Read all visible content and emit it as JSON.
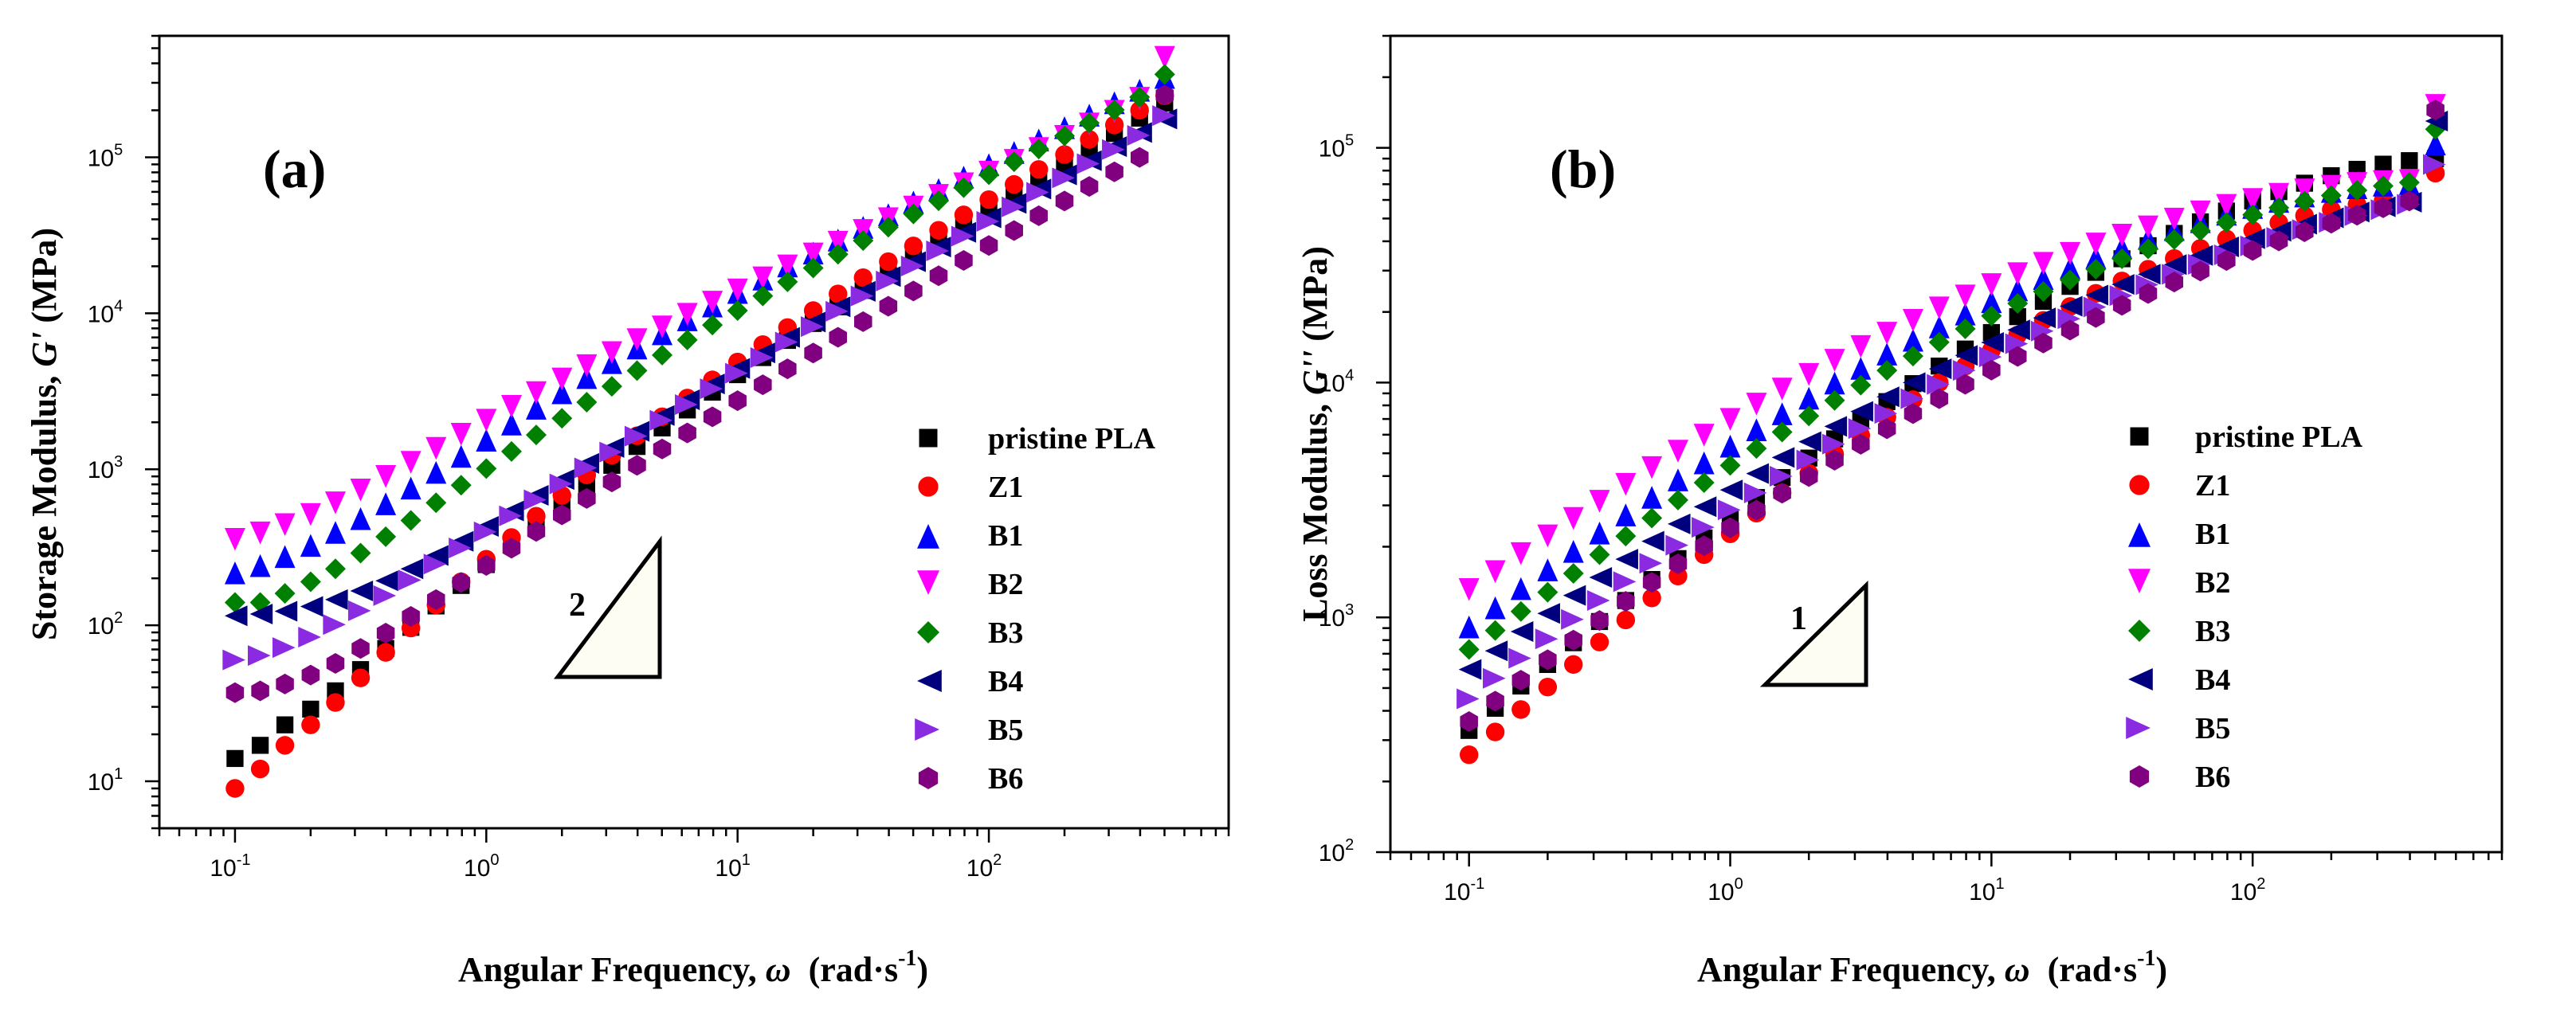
{
  "colors": {
    "pristine PLA": "#000000",
    "Z1": "#ff0000",
    "B1": "#0000ff",
    "B2": "#ff00ff",
    "B3": "#008000",
    "B4": "#00007f",
    "B5": "#8a2be2",
    "B6": "#800080",
    "triangle_fill": "#fdfdf3"
  },
  "chart_data": [
    {
      "type": "scatter",
      "panel_label": "(a)",
      "xscale": "log",
      "yscale": "log",
      "xlim": [
        0.05,
        900
      ],
      "ylim": [
        5,
        600000
      ],
      "xlabel": {
        "main": "Angular Frequency, ",
        "symbol": "ω",
        "unit": "(rad·s",
        "exp": "-1",
        "close": ")"
      },
      "ylabel": {
        "main": "Storage Modulus, ",
        "symbol": "G'",
        "unit": " (MPa)"
      },
      "xticks": [
        {
          "base": "10",
          "exp": "-1"
        },
        {
          "base": "10",
          "exp": "0"
        },
        {
          "base": "10",
          "exp": "1"
        },
        {
          "base": "10",
          "exp": "2"
        }
      ],
      "yticks": [
        {
          "base": "10",
          "exp": "1"
        },
        {
          "base": "10",
          "exp": "2"
        },
        {
          "base": "10",
          "exp": "3"
        },
        {
          "base": "10",
          "exp": "4"
        },
        {
          "base": "10",
          "exp": "5"
        }
      ],
      "slope_label": "2",
      "legend_position": "right-middle",
      "x": [
        0.1,
        0.126,
        0.158,
        0.2,
        0.251,
        0.316,
        0.398,
        0.501,
        0.631,
        0.794,
        1.0,
        1.26,
        1.58,
        2.0,
        2.51,
        3.16,
        3.98,
        5.01,
        6.31,
        7.94,
        10.0,
        12.6,
        15.8,
        20.0,
        25.1,
        31.6,
        39.8,
        50.1,
        63.1,
        79.4,
        100,
        126,
        158,
        200,
        251,
        316,
        398,
        501
      ],
      "series": [
        {
          "name": "pristine PLA",
          "marker": "square",
          "values": [
            14,
            17,
            23,
            29,
            38,
            52,
            71,
            97,
            133,
            180,
            245,
            330,
            445,
            600,
            800,
            1060,
            1400,
            1840,
            2400,
            3120,
            4040,
            5200,
            6700,
            8600,
            11000,
            14000,
            17800,
            22600,
            28600,
            36100,
            45500,
            57300,
            72000,
            90400,
            113000,
            142000,
            178000,
            222000
          ]
        },
        {
          "name": "Z1",
          "marker": "circle",
          "values": [
            9,
            12,
            17,
            23,
            32,
            46,
            67,
            96,
            135,
            190,
            265,
            365,
            500,
            680,
            920,
            1230,
            1640,
            2170,
            2860,
            3740,
            4870,
            6300,
            8100,
            10400,
            13300,
            16900,
            21400,
            27000,
            34000,
            42700,
            53500,
            66900,
            83500,
            104000,
            130000,
            161000,
            200000,
            248000
          ]
        },
        {
          "name": "B1",
          "marker": "triangle-up",
          "values": [
            220,
            245,
            280,
            330,
            400,
            490,
            610,
            770,
            970,
            1230,
            1560,
            1980,
            2500,
            3140,
            3930,
            4900,
            6080,
            7500,
            9220,
            11300,
            13800,
            16800,
            20400,
            24700,
            29900,
            36100,
            43500,
            52400,
            63000,
            75700,
            90900,
            109000,
            131000,
            157000,
            189000,
            227000,
            273000,
            330000
          ]
        },
        {
          "name": "B2",
          "marker": "triangle-down",
          "values": [
            350,
            385,
            435,
            505,
            600,
            725,
            885,
            1090,
            1340,
            1650,
            2030,
            2490,
            3050,
            3730,
            4540,
            5510,
            6670,
            8050,
            9690,
            11600,
            13900,
            16600,
            19800,
            23600,
            28100,
            33400,
            39700,
            47200,
            56000,
            66500,
            79000,
            94000,
            112000,
            134000,
            161000,
            194000,
            235000,
            430000
          ]
        },
        {
          "name": "B3",
          "marker": "diamond",
          "values": [
            140,
            140,
            160,
            190,
            230,
            290,
            370,
            470,
            610,
            790,
            1010,
            1300,
            1660,
            2120,
            2690,
            3400,
            4290,
            5390,
            6740,
            8400,
            10400,
            12900,
            15900,
            19500,
            23900,
            29200,
            35600,
            43300,
            52600,
            63800,
            77300,
            93600,
            113000,
            137000,
            166000,
            201000,
            243000,
            340000
          ]
        },
        {
          "name": "B4",
          "marker": "triangle-left",
          "values": [
            115,
            118,
            123,
            132,
            146,
            166,
            193,
            230,
            280,
            345,
            430,
            540,
            680,
            860,
            1090,
            1380,
            1750,
            2210,
            2790,
            3520,
            4430,
            5570,
            7000,
            8780,
            11000,
            13800,
            17200,
            21400,
            26600,
            33000,
            40900,
            50600,
            62500,
            77100,
            95000,
            117000,
            144000,
            176000
          ]
        },
        {
          "name": "B5",
          "marker": "triangle-right",
          "values": [
            60,
            64,
            72,
            84,
            101,
            124,
            155,
            195,
            247,
            313,
            397,
            503,
            637,
            806,
            1020,
            1290,
            1630,
            2060,
            2600,
            3280,
            4130,
            5200,
            6540,
            8210,
            10300,
            12900,
            16100,
            20100,
            25100,
            31200,
            38800,
            48100,
            59600,
            73700,
            91000,
            112000,
            138000,
            185000
          ]
        },
        {
          "name": "B6",
          "marker": "hexagon",
          "values": [
            37,
            38,
            42,
            48,
            57,
            71,
            89,
            114,
            146,
            188,
            242,
            312,
            400,
            510,
            650,
            830,
            1060,
            1350,
            1710,
            2170,
            2750,
            3480,
            4400,
            5560,
            7010,
            8830,
            11100,
            13900,
            17400,
            21800,
            27200,
            33900,
            42200,
            52400,
            65000,
            80600,
            99800,
            250000
          ]
        }
      ]
    },
    {
      "type": "scatter",
      "panel_label": "(b)",
      "xscale": "log",
      "yscale": "log",
      "xlim": [
        0.05,
        900
      ],
      "ylim": [
        100,
        300000
      ],
      "xlabel": {
        "main": "Angular Frequency, ",
        "symbol": "ω",
        "unit": "(rad·s",
        "exp": "-1",
        "close": ")"
      },
      "ylabel": {
        "main": "Loss Modulus, ",
        "symbol": "G''",
        "unit": " (MPa)"
      },
      "xticks": [
        {
          "base": "10",
          "exp": "-1"
        },
        {
          "base": "10",
          "exp": "0"
        },
        {
          "base": "10",
          "exp": "1"
        },
        {
          "base": "10",
          "exp": "2"
        }
      ],
      "yticks": [
        {
          "base": "10",
          "exp": "2"
        },
        {
          "base": "10",
          "exp": "3"
        },
        {
          "base": "10",
          "exp": "4"
        },
        {
          "base": "10",
          "exp": "5"
        }
      ],
      "slope_label": "1",
      "legend_position": "right-middle",
      "x": [
        0.1,
        0.126,
        0.158,
        0.2,
        0.251,
        0.316,
        0.398,
        0.501,
        0.631,
        0.794,
        1.0,
        1.26,
        1.58,
        2.0,
        2.51,
        3.16,
        3.98,
        5.01,
        6.31,
        7.94,
        10.0,
        12.6,
        15.8,
        20.0,
        25.1,
        31.6,
        39.8,
        50.1,
        63.1,
        79.4,
        100,
        126,
        158,
        200,
        251,
        316,
        398,
        501
      ],
      "series": [
        {
          "name": "pristine PLA",
          "marker": "square",
          "values": [
            330,
            410,
            510,
            630,
            780,
            960,
            1180,
            1450,
            1780,
            2180,
            2660,
            3240,
            3940,
            4770,
            5760,
            6930,
            8300,
            9900,
            11760,
            13900,
            16340,
            19100,
            22200,
            25700,
            29500,
            33700,
            38300,
            43200,
            48400,
            53800,
            59400,
            65100,
            70700,
            76100,
            81000,
            85200,
            88200,
            90000
          ]
        },
        {
          "name": "Z1",
          "marker": "circle",
          "values": [
            260,
            325,
            405,
            505,
            630,
            785,
            975,
            1210,
            1500,
            1850,
            2270,
            2780,
            3390,
            4110,
            4960,
            5960,
            7120,
            8460,
            10000,
            11760,
            13740,
            15950,
            18400,
            21100,
            24000,
            27100,
            30400,
            33800,
            37300,
            40900,
            44500,
            48000,
            51400,
            54600,
            57400,
            59700,
            61300,
            78000
          ]
        },
        {
          "name": "B1",
          "marker": "triangle-up",
          "values": [
            920,
            1110,
            1340,
            1610,
            1930,
            2310,
            2760,
            3280,
            3890,
            4600,
            5420,
            6360,
            7440,
            8670,
            10060,
            11620,
            13370,
            15310,
            17450,
            19800,
            22350,
            25100,
            28050,
            31200,
            34500,
            38000,
            41600,
            45300,
            49000,
            52700,
            56300,
            59800,
            63000,
            65900,
            68300,
            70100,
            71200,
            105000
          ]
        },
        {
          "name": "B2",
          "marker": "triangle-down",
          "values": [
            1300,
            1550,
            1850,
            2200,
            2610,
            3090,
            3650,
            4300,
            5050,
            5910,
            6900,
            8020,
            9290,
            10720,
            12320,
            14100,
            16070,
            18230,
            20590,
            23140,
            25880,
            28800,
            31900,
            35150,
            38550,
            42050,
            45600,
            49200,
            52800,
            56300,
            59600,
            62700,
            65500,
            67900,
            69800,
            71100,
            71700,
            150000
          ]
        },
        {
          "name": "B3",
          "marker": "diamond",
          "values": [
            730,
            880,
            1060,
            1280,
            1540,
            1850,
            2220,
            2650,
            3160,
            3750,
            4440,
            5240,
            6160,
            7210,
            8400,
            9750,
            11270,
            12970,
            14860,
            16950,
            19240,
            21740,
            24440,
            27340,
            30430,
            33700,
            37120,
            40680,
            44340,
            48070,
            51820,
            55550,
            59190,
            62670,
            65900,
            68800,
            71200,
            120000
          ]
        },
        {
          "name": "B4",
          "marker": "triangle-left",
          "values": [
            600,
            720,
            870,
            1040,
            1240,
            1480,
            1770,
            2110,
            2500,
            2960,
            3490,
            4100,
            4800,
            5600,
            6510,
            7540,
            8700,
            10000,
            11450,
            13060,
            14830,
            16770,
            18880,
            21160,
            23600,
            26200,
            28940,
            31820,
            34800,
            37870,
            41000,
            44150,
            47280,
            50350,
            53300,
            56100,
            58700,
            130000
          ]
        },
        {
          "name": "B5",
          "marker": "triangle-right",
          "values": [
            450,
            550,
            670,
            810,
            980,
            1180,
            1420,
            1700,
            2030,
            2420,
            2870,
            3390,
            3990,
            4680,
            5470,
            6370,
            7390,
            8540,
            9830,
            11270,
            12870,
            14640,
            16580,
            18700,
            21000,
            23480,
            26130,
            28950,
            31920,
            35020,
            38230,
            41520,
            44850,
            48170,
            51430,
            54570,
            57500,
            85000
          ]
        },
        {
          "name": "B6",
          "marker": "hexagon",
          "values": [
            360,
            440,
            540,
            660,
            800,
            970,
            1170,
            1410,
            1690,
            2020,
            2410,
            2860,
            3380,
            3980,
            4670,
            5460,
            6360,
            7380,
            8540,
            9840,
            11300,
            12930,
            14740,
            16740,
            18940,
            21350,
            23970,
            26810,
            29860,
            33110,
            36550,
            40160,
            43910,
            47760,
            51660,
            55560,
            59380,
            145000
          ]
        }
      ]
    }
  ]
}
